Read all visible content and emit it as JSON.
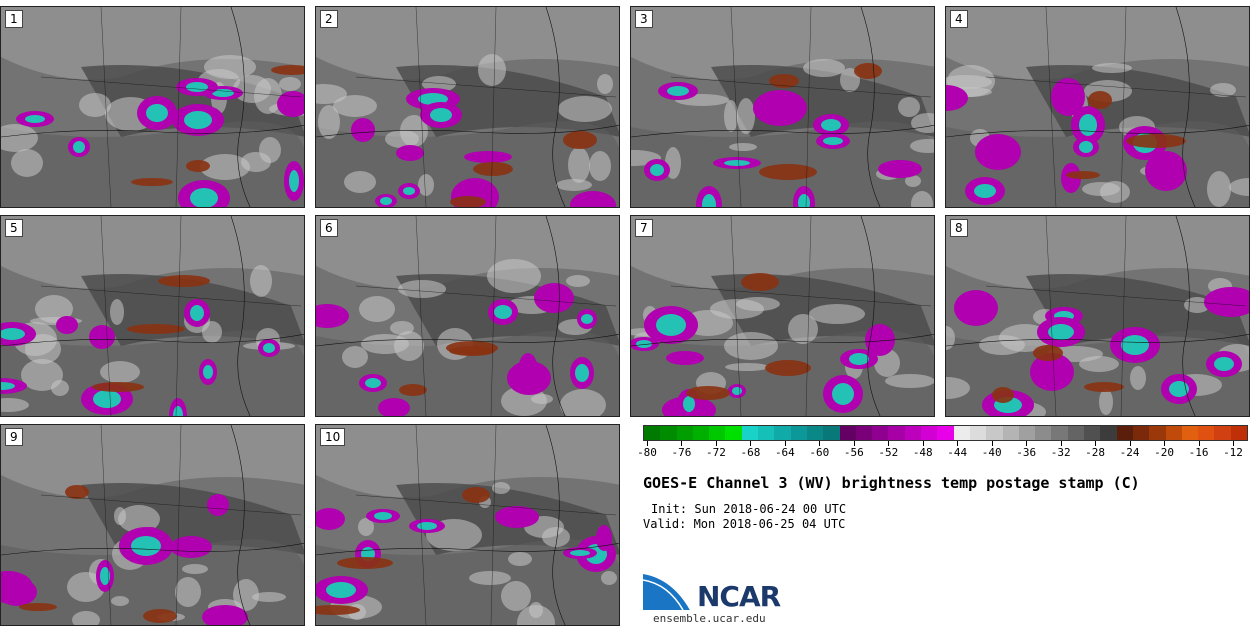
{
  "panels": [
    {
      "label": "1"
    },
    {
      "label": "2"
    },
    {
      "label": "3"
    },
    {
      "label": "4"
    },
    {
      "label": "5"
    },
    {
      "label": "6"
    },
    {
      "label": "7"
    },
    {
      "label": "8"
    },
    {
      "label": "9"
    },
    {
      "label": "10"
    }
  ],
  "colorbar": {
    "colors": [
      "#007a00",
      "#008c00",
      "#009e00",
      "#00b000",
      "#00c800",
      "#00e000",
      "#1ad3c8",
      "#14c0b8",
      "#10aaa8",
      "#0c9898",
      "#0a8888",
      "#087878",
      "#640064",
      "#7a007a",
      "#900090",
      "#a600a6",
      "#bc00bc",
      "#d200d2",
      "#e800e8",
      "#ececec",
      "#dcdcdc",
      "#c8c8c8",
      "#b4b4b4",
      "#a0a0a0",
      "#8c8c8c",
      "#787878",
      "#646464",
      "#505050",
      "#3c3c3c",
      "#5a1e0a",
      "#7a2a0a",
      "#9a380a",
      "#c04a0a",
      "#e06010",
      "#e05010",
      "#d04010",
      "#c03008"
    ],
    "ticks": [
      "-80",
      "-76",
      "-72",
      "-68",
      "-64",
      "-60",
      "-56",
      "-52",
      "-48",
      "-44",
      "-40",
      "-36",
      "-32",
      "-28",
      "-24",
      "-20",
      "-16",
      "-12"
    ]
  },
  "title": "GOES-E Channel 3 (WV) brightness temp postage stamp (C)",
  "init": "Init: Sun 2018-06-24 00 UTC",
  "valid": "Valid: Mon 2018-06-25 04 UTC",
  "logo": {
    "text": "NCAR",
    "url": "ensemble.ucar.edu"
  }
}
